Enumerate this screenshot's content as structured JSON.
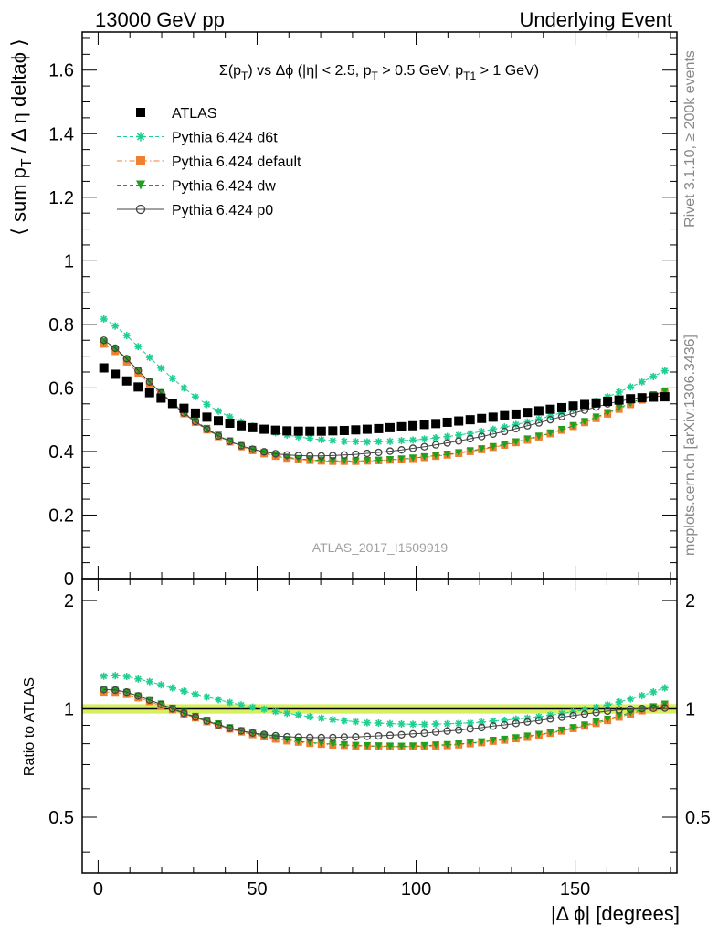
{
  "header": {
    "left": "13000 GeV pp",
    "right": "Underlying Event"
  },
  "side_labels": {
    "rivet": "Rivet 3.1.10, ≥ 200k events",
    "mcplots": "mcplots.cern.ch [arXiv:1306.3436]"
  },
  "watermark": "ATLAS_2017_I1509919",
  "plot_title": {
    "sigma": "Σ(p",
    "sigma_sub": "T",
    "after_sigma": ") vs Δϕ (|η| < 2.5, p",
    "pt_sub": "T",
    "after_pt": " > 0.5 GeV, p",
    "pt1_sub": "T1",
    "after_pt1": " > 1 GeV)"
  },
  "axes": {
    "ylabel_main_a": "⟨ sum p",
    "ylabel_main_sub": "T",
    "ylabel_main_b": " / Δ η deltaϕ ⟩",
    "ylabel_ratio": "Ratio to ATLAS",
    "xlabel": "|Δ ϕ| [degrees]",
    "main_yticks": [
      "0",
      "0.2",
      "0.4",
      "0.6",
      "0.8",
      "1",
      "1.2",
      "1.4",
      "1.6"
    ],
    "ratio_yticks": [
      "0.5",
      "1",
      "2"
    ],
    "xticks": [
      "0",
      "50",
      "100",
      "150"
    ]
  },
  "legend": [
    {
      "label": "ATLAS",
      "color": "#000000",
      "marker": "square"
    },
    {
      "label": "Pythia 6.424 d6t",
      "color": "#1fcf8f",
      "marker": "star"
    },
    {
      "label": "Pythia 6.424 default",
      "color": "#f08030",
      "marker": "square"
    },
    {
      "label": "Pythia 6.424 dw",
      "color": "#20a020",
      "marker": "triangle-down"
    },
    {
      "label": "Pythia 6.424 p0",
      "color": "#444444",
      "marker": "open-circle"
    }
  ],
  "chart_data": {
    "type": "scatter",
    "title": "Σ(pT) vs Δϕ (|η| < 2.5, pT > 0.5 GeV, pT1 > 1 GeV)",
    "xlabel": "|Δ ϕ| [degrees]",
    "ylabel": "⟨ sum pT / Δ η deltaϕ ⟩",
    "xlim": [
      -5,
      182
    ],
    "ylim": [
      0,
      1.72
    ],
    "ratio_ylim": [
      0.35,
      2.3
    ],
    "ratio_scale": "log",
    "ratio_band": [
      0.97,
      1.03
    ],
    "grid": false,
    "legend_position": "top-left",
    "x": [
      1.8,
      5.4,
      9,
      12.6,
      16.2,
      19.8,
      23.4,
      27,
      30.6,
      34.2,
      37.8,
      41.4,
      45,
      48.6,
      52.2,
      55.8,
      59.4,
      63,
      66.6,
      70.2,
      73.8,
      77.4,
      81,
      84.6,
      88.2,
      91.8,
      95.4,
      99,
      102.6,
      106.2,
      109.8,
      113.4,
      117,
      120.6,
      124.2,
      127.8,
      131.4,
      135,
      138.6,
      142.2,
      145.8,
      149.4,
      153,
      156.6,
      160.2,
      163.8,
      167.4,
      171,
      174.6,
      178.2
    ],
    "series": [
      {
        "name": "ATLAS",
        "values": [
          0.663,
          0.643,
          0.622,
          0.603,
          0.585,
          0.568,
          0.551,
          0.536,
          0.521,
          0.508,
          0.497,
          0.489,
          0.481,
          0.475,
          0.47,
          0.467,
          0.465,
          0.464,
          0.464,
          0.464,
          0.465,
          0.466,
          0.468,
          0.47,
          0.472,
          0.475,
          0.478,
          0.481,
          0.485,
          0.488,
          0.492,
          0.496,
          0.5,
          0.504,
          0.508,
          0.513,
          0.518,
          0.523,
          0.528,
          0.533,
          0.538,
          0.543,
          0.548,
          0.553,
          0.558,
          0.562,
          0.566,
          0.569,
          0.571,
          0.572
        ]
      },
      {
        "name": "Pythia 6.424 d6t",
        "values": [
          0.817,
          0.795,
          0.765,
          0.73,
          0.696,
          0.662,
          0.63,
          0.6,
          0.572,
          0.548,
          0.527,
          0.509,
          0.493,
          0.48,
          0.469,
          0.459,
          0.452,
          0.446,
          0.441,
          0.437,
          0.434,
          0.432,
          0.431,
          0.43,
          0.431,
          0.432,
          0.434,
          0.436,
          0.439,
          0.443,
          0.447,
          0.452,
          0.457,
          0.463,
          0.47,
          0.477,
          0.485,
          0.493,
          0.502,
          0.512,
          0.522,
          0.533,
          0.545,
          0.558,
          0.572,
          0.587,
          0.603,
          0.619,
          0.636,
          0.654
        ]
      },
      {
        "name": "Pythia 6.424 default",
        "values": [
          0.738,
          0.715,
          0.682,
          0.647,
          0.613,
          0.579,
          0.548,
          0.519,
          0.492,
          0.468,
          0.447,
          0.43,
          0.415,
          0.403,
          0.393,
          0.385,
          0.379,
          0.375,
          0.372,
          0.37,
          0.369,
          0.369,
          0.369,
          0.37,
          0.371,
          0.373,
          0.375,
          0.378,
          0.381,
          0.385,
          0.389,
          0.394,
          0.4,
          0.406,
          0.413,
          0.42,
          0.428,
          0.436,
          0.446,
          0.456,
          0.467,
          0.479,
          0.491,
          0.504,
          0.518,
          0.533,
          0.548,
          0.562,
          0.575,
          0.585
        ]
      },
      {
        "name": "Pythia 6.424 dw",
        "values": [
          0.745,
          0.722,
          0.69,
          0.654,
          0.619,
          0.585,
          0.553,
          0.523,
          0.496,
          0.472,
          0.451,
          0.433,
          0.418,
          0.406,
          0.396,
          0.388,
          0.382,
          0.377,
          0.374,
          0.372,
          0.371,
          0.37,
          0.37,
          0.371,
          0.372,
          0.374,
          0.376,
          0.379,
          0.383,
          0.387,
          0.391,
          0.396,
          0.402,
          0.408,
          0.415,
          0.422,
          0.43,
          0.439,
          0.448,
          0.458,
          0.469,
          0.481,
          0.494,
          0.508,
          0.522,
          0.537,
          0.552,
          0.566,
          0.578,
          0.589
        ]
      },
      {
        "name": "Pythia 6.424 p0",
        "values": [
          0.75,
          0.725,
          0.692,
          0.655,
          0.619,
          0.584,
          0.551,
          0.521,
          0.494,
          0.47,
          0.449,
          0.432,
          0.418,
          0.407,
          0.399,
          0.393,
          0.389,
          0.387,
          0.386,
          0.386,
          0.387,
          0.389,
          0.391,
          0.394,
          0.397,
          0.401,
          0.405,
          0.41,
          0.415,
          0.421,
          0.427,
          0.433,
          0.44,
          0.447,
          0.455,
          0.463,
          0.472,
          0.481,
          0.49,
          0.5,
          0.51,
          0.52,
          0.53,
          0.54,
          0.55,
          0.558,
          0.565,
          0.57,
          0.573,
          0.575
        ]
      }
    ]
  }
}
